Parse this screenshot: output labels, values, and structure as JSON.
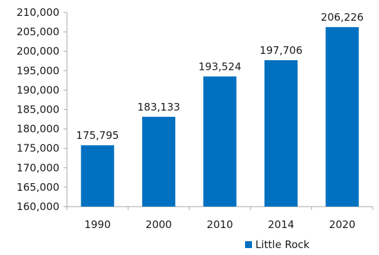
{
  "chart_data": {
    "type": "bar",
    "categories": [
      "1990",
      "2000",
      "2010",
      "2014",
      "2020"
    ],
    "series": [
      {
        "name": "Little Rock",
        "values": [
          175795,
          183133,
          193524,
          197706,
          206226
        ],
        "value_labels": [
          "175,795",
          "183,133",
          "193,524",
          "197,706",
          "206,226"
        ]
      }
    ],
    "yticks": [
      160000,
      165000,
      170000,
      175000,
      180000,
      185000,
      190000,
      195000,
      200000,
      205000,
      210000
    ],
    "ytick_labels": [
      "160,000",
      "165,000",
      "170,000",
      "175,000",
      "180,000",
      "185,000",
      "190,000",
      "195,000",
      "200,000",
      "205,000",
      "210,000"
    ],
    "ylim": [
      160000,
      210000
    ],
    "grid": false,
    "legend_position": "bottom-right",
    "bar_color": "#0070c0",
    "axis_color": "#a6a6a6"
  }
}
